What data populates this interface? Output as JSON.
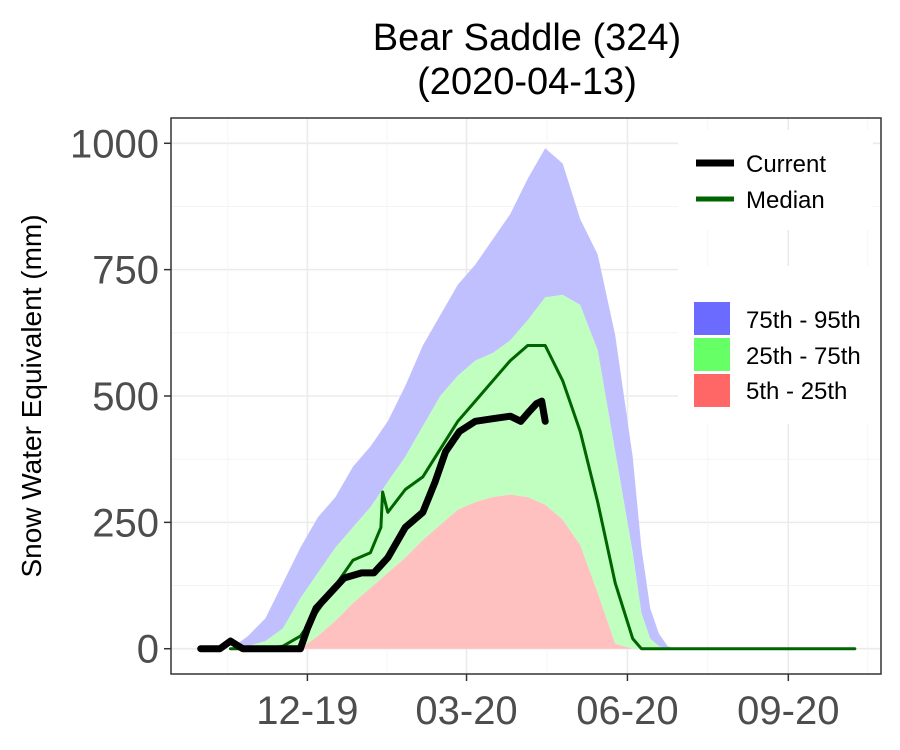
{
  "chart_data": {
    "type": "area",
    "title": "Bear Saddle (324)",
    "subtitle": "(2020-04-13)",
    "xlabel": "",
    "ylabel": "Snow Water Equivalent (mm)",
    "xlim": [
      "2019-09-14",
      "2020-10-24"
    ],
    "ylim": [
      -50,
      1050
    ],
    "x_ticks": [
      {
        "date": "2019-12-01",
        "label": "12-19"
      },
      {
        "date": "2020-03-01",
        "label": "03-20"
      },
      {
        "date": "2020-06-01",
        "label": "06-20"
      },
      {
        "date": "2020-09-01",
        "label": "09-20"
      }
    ],
    "y_ticks": [
      0,
      250,
      500,
      750,
      1000
    ],
    "grid": true,
    "legend_placement": "top-right",
    "line_legend": [
      {
        "key": "current",
        "label": "Current",
        "color": "#000000"
      },
      {
        "key": "median",
        "label": "Median",
        "color": "#006400"
      }
    ],
    "band_legend": [
      {
        "key": "p75_95",
        "label": "75th - 95th",
        "color": "#6b6bff"
      },
      {
        "key": "p25_75",
        "label": "25th - 75th",
        "color": "#66ff66"
      },
      {
        "key": "p5_25",
        "label": "5th - 25th",
        "color": "#ff6666"
      }
    ],
    "band_fill_colors": {
      "p75_95": "#c0c0ff",
      "p25_75": "#c0ffc0",
      "p5_25": "#ffc0c0"
    },
    "percentiles": {
      "x": [
        "2019-10-18",
        "2019-10-28",
        "2019-11-07",
        "2019-11-17",
        "2019-11-27",
        "2019-12-07",
        "2019-12-17",
        "2019-12-27",
        "2020-01-06",
        "2020-01-16",
        "2020-01-26",
        "2020-02-05",
        "2020-02-15",
        "2020-02-25",
        "2020-03-06",
        "2020-03-16",
        "2020-03-26",
        "2020-04-05",
        "2020-04-15",
        "2020-04-25",
        "2020-05-05",
        "2020-05-15",
        "2020-05-25",
        "2020-06-04",
        "2020-06-09",
        "2020-06-14",
        "2020-06-19",
        "2020-06-24",
        "2020-06-29"
      ],
      "p5": [
        0,
        0,
        0,
        0,
        0,
        0,
        0,
        0,
        0,
        0,
        0,
        0,
        0,
        0,
        0,
        0,
        0,
        0,
        0,
        0,
        0,
        0,
        0,
        0,
        0,
        0,
        0,
        0,
        0
      ],
      "p25": [
        0,
        0,
        0,
        0,
        0,
        25,
        55,
        90,
        120,
        150,
        180,
        215,
        245,
        275,
        290,
        300,
        305,
        300,
        285,
        255,
        205,
        110,
        10,
        0,
        0,
        0,
        0,
        0,
        0
      ],
      "p75": [
        0,
        5,
        15,
        40,
        100,
        150,
        200,
        240,
        280,
        330,
        380,
        440,
        500,
        540,
        570,
        585,
        610,
        650,
        695,
        700,
        680,
        590,
        390,
        190,
        70,
        20,
        5,
        0,
        0
      ],
      "p95": [
        0,
        25,
        60,
        130,
        200,
        260,
        300,
        360,
        400,
        450,
        520,
        600,
        660,
        720,
        760,
        810,
        860,
        930,
        990,
        960,
        850,
        780,
        620,
        380,
        200,
        80,
        30,
        5,
        0
      ]
    },
    "median": {
      "x": [
        "2019-10-18",
        "2019-11-07",
        "2019-11-17",
        "2019-11-27",
        "2019-12-07",
        "2019-12-17",
        "2019-12-27",
        "2020-01-06",
        "2020-01-12",
        "2020-01-13",
        "2020-01-16",
        "2020-01-26",
        "2020-02-05",
        "2020-02-15",
        "2020-02-25",
        "2020-03-06",
        "2020-03-16",
        "2020-03-26",
        "2020-04-05",
        "2020-04-15",
        "2020-04-25",
        "2020-05-05",
        "2020-05-15",
        "2020-05-25",
        "2020-06-04",
        "2020-06-09",
        "2020-10-09"
      ],
      "y": [
        0,
        0,
        5,
        25,
        75,
        125,
        175,
        190,
        240,
        310,
        270,
        315,
        340,
        395,
        450,
        490,
        530,
        570,
        600,
        600,
        530,
        430,
        290,
        130,
        20,
        0,
        0
      ]
    },
    "current": {
      "x": [
        "2019-10-01",
        "2019-10-12",
        "2019-10-18",
        "2019-10-25",
        "2019-11-05",
        "2019-11-20",
        "2019-11-27",
        "2019-12-01",
        "2019-12-06",
        "2019-12-14",
        "2019-12-22",
        "2020-01-01",
        "2020-01-08",
        "2020-01-16",
        "2020-01-26",
        "2020-02-05",
        "2020-02-12",
        "2020-02-18",
        "2020-02-26",
        "2020-03-06",
        "2020-03-16",
        "2020-03-26",
        "2020-04-01",
        "2020-04-06",
        "2020-04-10",
        "2020-04-13",
        "2020-04-15"
      ],
      "y": [
        0,
        0,
        15,
        0,
        0,
        0,
        0,
        40,
        80,
        110,
        140,
        150,
        150,
        180,
        240,
        270,
        330,
        390,
        430,
        450,
        455,
        460,
        450,
        470,
        485,
        490,
        450
      ]
    }
  }
}
